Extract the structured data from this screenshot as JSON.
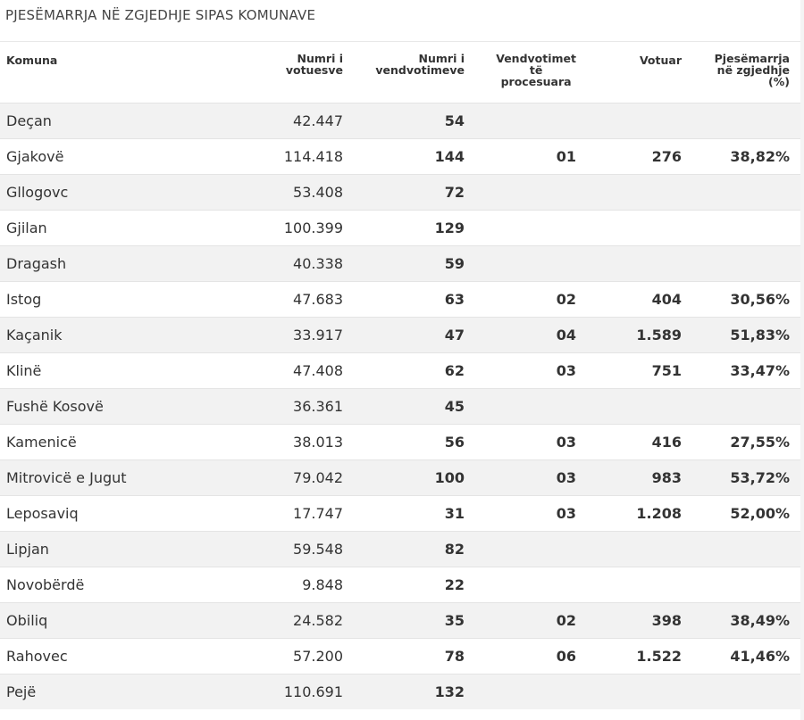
{
  "title": "PJESËMARRJA NË ZGJEDHJE SIPAS KOMUNAVE",
  "headers": {
    "komuna": "Komuna",
    "numri_votuesve": [
      "Numri i",
      "votuesve"
    ],
    "numri_vendvotimeve": [
      "Numri i",
      "vendvotimeve"
    ],
    "vendvotimet_procesuara": [
      "Vendvotimet",
      "të",
      "procesuara"
    ],
    "votuar": "Votuar",
    "pjesemarrja": [
      "Pjesëmarrja",
      "në zgjedhje",
      "(%)"
    ]
  },
  "rows": [
    {
      "komuna": "Deçan",
      "votues": "42.447",
      "vendvotime": "54",
      "procesuara": "",
      "votuar": "",
      "pjesemarrja": ""
    },
    {
      "komuna": "Gjakovë",
      "votues": "114.418",
      "vendvotime": "144",
      "procesuara": "01",
      "votuar": "276",
      "pjesemarrja": "38,82%"
    },
    {
      "komuna": "Gllogovc",
      "votues": "53.408",
      "vendvotime": "72",
      "procesuara": "",
      "votuar": "",
      "pjesemarrja": ""
    },
    {
      "komuna": "Gjilan",
      "votues": "100.399",
      "vendvotime": "129",
      "procesuara": "",
      "votuar": "",
      "pjesemarrja": ""
    },
    {
      "komuna": "Dragash",
      "votues": "40.338",
      "vendvotime": "59",
      "procesuara": "",
      "votuar": "",
      "pjesemarrja": ""
    },
    {
      "komuna": "Istog",
      "votues": "47.683",
      "vendvotime": "63",
      "procesuara": "02",
      "votuar": "404",
      "pjesemarrja": "30,56%"
    },
    {
      "komuna": "Kaçanik",
      "votues": "33.917",
      "vendvotime": "47",
      "procesuara": "04",
      "votuar": "1.589",
      "pjesemarrja": "51,83%"
    },
    {
      "komuna": "Klinë",
      "votues": "47.408",
      "vendvotime": "62",
      "procesuara": "03",
      "votuar": "751",
      "pjesemarrja": "33,47%"
    },
    {
      "komuna": "Fushë Kosovë",
      "votues": "36.361",
      "vendvotime": "45",
      "procesuara": "",
      "votuar": "",
      "pjesemarrja": ""
    },
    {
      "komuna": "Kamenicë",
      "votues": "38.013",
      "vendvotime": "56",
      "procesuara": "03",
      "votuar": "416",
      "pjesemarrja": "27,55%"
    },
    {
      "komuna": "Mitrovicë e Jugut",
      "votues": "79.042",
      "vendvotime": "100",
      "procesuara": "03",
      "votuar": "983",
      "pjesemarrja": "53,72%"
    },
    {
      "komuna": "Leposaviq",
      "votues": "17.747",
      "vendvotime": "31",
      "procesuara": "03",
      "votuar": "1.208",
      "pjesemarrja": "52,00%"
    },
    {
      "komuna": "Lipjan",
      "votues": "59.548",
      "vendvotime": "82",
      "procesuara": "",
      "votuar": "",
      "pjesemarrja": ""
    },
    {
      "komuna": "Novobërdë",
      "votues": "9.848",
      "vendvotime": "22",
      "procesuara": "",
      "votuar": "",
      "pjesemarrja": ""
    },
    {
      "komuna": "Obiliq",
      "votues": "24.582",
      "vendvotime": "35",
      "procesuara": "02",
      "votuar": "398",
      "pjesemarrja": "38,49%"
    },
    {
      "komuna": "Rahovec",
      "votues": "57.200",
      "vendvotime": "78",
      "procesuara": "06",
      "votuar": "1.522",
      "pjesemarrja": "41,46%"
    },
    {
      "komuna": "Pejë",
      "votues": "110.691",
      "vendvotime": "132",
      "procesuara": "",
      "votuar": "",
      "pjesemarrja": ""
    }
  ]
}
